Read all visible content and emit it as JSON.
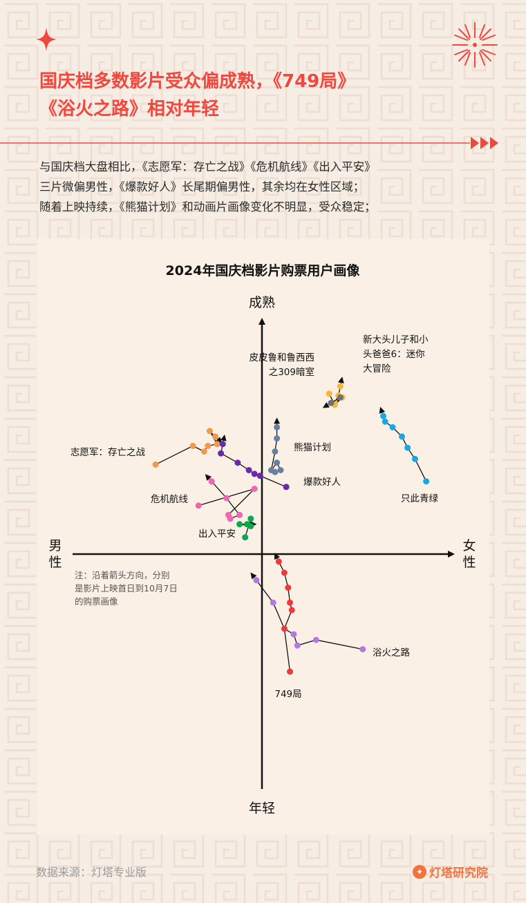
{
  "title": {
    "line1": "国庆档多数影片受众偏成熟，《749局》",
    "line2": "《浴火之路》相对年轻"
  },
  "intro": {
    "line1": "与国庆档大盘相比，《志愿军：存亡之战》《危机航线》《出入平安》",
    "line2": "三片微偏男性，《爆款好人》长尾期偏男性，其余均在女性区域；",
    "line3": "随着上映持续，《熊猫计划》和动画片画像变化不明显，受众稳定；"
  },
  "source": "数据来源：灯塔专业版",
  "brand": {
    "name": "灯塔研究院",
    "logo_icon": "lighthouse-logo-icon"
  },
  "colors": {
    "accent": "#f0473f",
    "background": "#f6ede5",
    "card": "#fbf0e6"
  },
  "chart_data": {
    "type": "scatter",
    "title": "2024年国庆档影片购票用户画像",
    "axis_labels": {
      "top": "成熟",
      "bottom": "年轻",
      "left": "男性",
      "right": "女性"
    },
    "xlim": [
      -10,
      10
    ],
    "ylim": [
      -10,
      10
    ],
    "note": "注：沿着箭头方向，分别是影片上映首日到10月7日的购票画像",
    "note_lines": [
      "注：沿着箭头方向，分别",
      "是影片上映首日到10月7日",
      "的购票画像"
    ],
    "series": [
      {
        "name": "志愿军：存亡之战",
        "label_lines": [
          "志愿军：存亡之战"
        ],
        "color": "#f09a4a",
        "points": [
          [
            -5.7,
            4.8
          ],
          [
            -3.7,
            5.8
          ],
          [
            -3.1,
            5.5
          ],
          [
            -2.9,
            5.8
          ],
          [
            -2.4,
            5.9
          ],
          [
            -2.8,
            6.6
          ],
          [
            -2.5,
            6.3
          ]
        ]
      },
      {
        "name": "爆款好人",
        "label_lines": [
          "爆款好人"
        ],
        "color": "#6a2aa8",
        "points": [
          [
            1.3,
            3.6
          ],
          [
            -0.1,
            4.2
          ],
          [
            -0.4,
            4.3
          ],
          [
            -0.7,
            4.5
          ],
          [
            -1.3,
            4.9
          ],
          [
            -2.2,
            5.4
          ],
          [
            -2.1,
            5.9
          ]
        ]
      },
      {
        "name": "危机航线",
        "label_lines": [
          "危机航线"
        ],
        "color": "#f066b0",
        "points": [
          [
            -3.4,
            2.6
          ],
          [
            -0.4,
            3.5
          ],
          [
            -1.8,
            2.1
          ],
          [
            -1.7,
            1.9
          ],
          [
            -1.2,
            2.1
          ],
          [
            -1.9,
            3.0
          ],
          [
            -2.7,
            3.9
          ]
        ]
      },
      {
        "name": "出入平安",
        "label_lines": [
          "出入平安"
        ],
        "color": "#0ca84c",
        "points": [
          [
            -0.9,
            0.9
          ],
          [
            -0.6,
            1.9
          ],
          [
            -0.6,
            1.5
          ],
          [
            -1.2,
            1.6
          ],
          [
            -0.8,
            1.6
          ]
        ]
      },
      {
        "name": "熊猫计划",
        "label_lines": [
          "熊猫计划"
        ],
        "color": "#667fa3",
        "points": [
          [
            0.7,
            4.4
          ],
          [
            1.0,
            4.5
          ],
          [
            0.8,
            4.9
          ],
          [
            0.5,
            4.5
          ],
          [
            0.7,
            5.5
          ],
          [
            0.8,
            6.2
          ],
          [
            0.8,
            6.8
          ]
        ]
      },
      {
        "name": "皮皮鲁和鲁西西之309暗室",
        "label_lines": [
          "皮皮鲁和鲁西西",
          "之309暗室"
        ],
        "color": "#f5b93a",
        "points": [
          [
            3.6,
            8.6
          ],
          [
            3.9,
            8.0
          ],
          [
            4.3,
            8.4
          ],
          [
            3.9,
            8.1
          ],
          [
            4.1,
            8.5
          ],
          [
            4.2,
            9.0
          ]
        ]
      },
      {
        "name": "新大头儿子和小头爸爸6：迷你大冒险",
        "label_lines": [
          "新大头儿子和小",
          "头爸爸6：迷你",
          "大冒险"
        ],
        "color": "#6f7378",
        "points": [
          [
            4.2,
            8.4
          ],
          [
            3.7,
            8.1
          ]
        ]
      },
      {
        "name": "只此青绿",
        "label_lines": [
          "只此青绿"
        ],
        "color": "#18a8e6",
        "points": [
          [
            8.8,
            3.9
          ],
          [
            8.2,
            5.1
          ],
          [
            7.8,
            5.7
          ],
          [
            7.5,
            6.3
          ],
          [
            7.0,
            6.8
          ],
          [
            6.6,
            7.1
          ],
          [
            6.5,
            7.4
          ]
        ]
      },
      {
        "name": "浴火之路",
        "label_lines": [
          "浴火之路"
        ],
        "color": "#b47ae0",
        "points": [
          [
            5.4,
            -5.1
          ],
          [
            2.9,
            -4.6
          ],
          [
            1.9,
            -4.9
          ],
          [
            1.7,
            -4.3
          ],
          [
            1.2,
            -4.0
          ],
          [
            0.6,
            -2.6
          ],
          [
            -0.3,
            -1.4
          ]
        ]
      },
      {
        "name": "749局",
        "label_lines": [
          "749局"
        ],
        "color": "#ee3a3a",
        "points": [
          [
            1.5,
            -6.3
          ],
          [
            1.2,
            -4.0
          ],
          [
            1.6,
            -3.0
          ],
          [
            1.5,
            -2.6
          ],
          [
            1.4,
            -1.8
          ],
          [
            1.2,
            -1.0
          ],
          [
            0.9,
            -0.4
          ]
        ]
      }
    ]
  }
}
